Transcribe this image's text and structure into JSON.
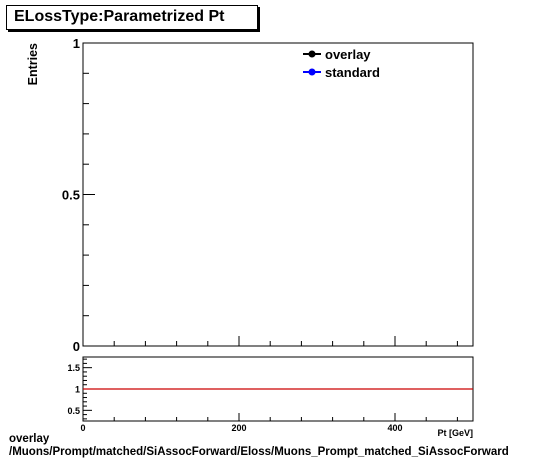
{
  "title": "ELossType:Parametrized Pt",
  "footer": {
    "line1": "overlay",
    "line2": "/Muons/Prompt/matched/SiAssocForward/Eloss/Muons_Prompt_matched_SiAssocForward"
  },
  "chart_data": [
    {
      "type": "line",
      "panel": "main",
      "ylabel": "Entries",
      "xlim": [
        0,
        500
      ],
      "ylim": [
        0,
        1
      ],
      "y_ticks": [
        0,
        0.5,
        1
      ],
      "y_tick_labels": [
        "0",
        "0.5",
        "1"
      ],
      "grid": false,
      "legend_position": "top-right",
      "series": [
        {
          "name": "overlay",
          "color": "#000000",
          "x": [],
          "y": []
        },
        {
          "name": "standard",
          "color": "#0000ff",
          "x": [],
          "y": []
        }
      ]
    },
    {
      "type": "line",
      "panel": "ratio",
      "xlabel": "Pt [GeV]",
      "xlim": [
        0,
        500
      ],
      "ylim": [
        0.25,
        1.75
      ],
      "x_ticks": [
        0,
        200,
        400
      ],
      "x_tick_labels": [
        "0",
        "200",
        "400"
      ],
      "y_ticks": [
        0.5,
        1,
        1.5
      ],
      "y_tick_labels": [
        "0.5",
        "1",
        "1.5"
      ],
      "reference_line": {
        "y": 1,
        "color": "#cc0000"
      }
    }
  ]
}
